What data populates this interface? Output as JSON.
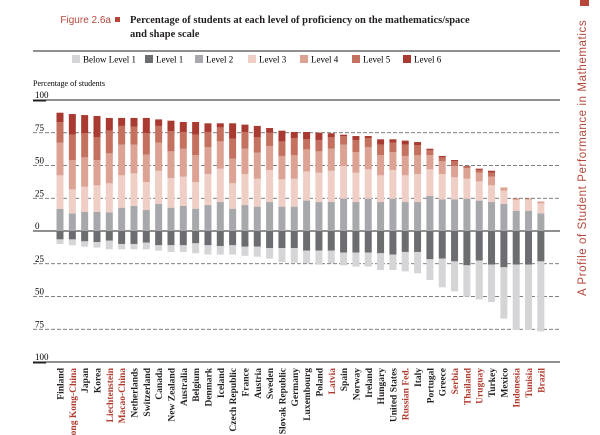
{
  "figure_label": "Figure 2.6a",
  "side_title": "A Profile of Student Performance in Mathematics",
  "chart_data": {
    "type": "bar",
    "stacked": "diverging",
    "title": "Percentage of students at each level of proficiency on the mathematics/space and shape scale",
    "ylabel": "Percentage of students",
    "ylim": [
      -100,
      100
    ],
    "yticks": [
      100,
      75,
      50,
      25,
      0,
      -25,
      -50,
      -75,
      -100
    ],
    "ytick_labels": [
      "100",
      "75",
      "50",
      "25",
      "0",
      "25",
      "50",
      "75",
      "100"
    ],
    "legend": [
      "Below Level 1",
      "Level 1",
      "Level 2",
      "Level 3",
      "Level 4",
      "Level 5",
      "Level 6"
    ],
    "legend_placement": "top",
    "colors": [
      "#d5d5d7",
      "#6c6d70",
      "#a6a8ab",
      "#efcec5",
      "#dca294",
      "#c4715f",
      "#a93a31"
    ],
    "partner_color": "#b03a2e",
    "categories": [
      "Finland",
      "Hong Kong-China",
      "Japan",
      "Korea",
      "Liechtenstein",
      "Macao-China",
      "Netherlands",
      "Switzerland",
      "Canada",
      "New Zealand",
      "Australia",
      "Belgium",
      "Denmark",
      "Iceland",
      "Czech Republic",
      "France",
      "Austria",
      "Sweden",
      "Slovak Republic",
      "Germany",
      "Luxembourg",
      "Poland",
      "Latvia",
      "Spain",
      "Norway",
      "Ireland",
      "Hungary",
      "United States",
      "Russian Fed.",
      "Italy",
      "Portugal",
      "Greece",
      "Serbia",
      "Thailand",
      "Uruguay",
      "Turkey",
      "Mexico",
      "Indonesia",
      "Tunisia",
      "Brazil"
    ],
    "partner": [
      false,
      true,
      false,
      false,
      true,
      true,
      false,
      false,
      false,
      false,
      false,
      false,
      false,
      false,
      false,
      false,
      false,
      false,
      false,
      false,
      false,
      false,
      true,
      false,
      false,
      false,
      false,
      false,
      true,
      false,
      false,
      false,
      true,
      true,
      true,
      false,
      false,
      true,
      true,
      true
    ],
    "series": [
      {
        "name": "Below Level 1",
        "values": [
          3.5,
          4.5,
          4.1,
          4.3,
          6.6,
          4.1,
          4.1,
          5.1,
          4.1,
          5.1,
          5.1,
          7.6,
          7.1,
          6.5,
          7.1,
          7.0,
          7.6,
          8.1,
          10.7,
          11.2,
          9.7,
          10.7,
          9.7,
          9.7,
          10.7,
          10.7,
          12.8,
          11.8,
          14.8,
          16.3,
          15.8,
          21.9,
          22.9,
          23.9,
          29.6,
          28.5,
          39.2,
          49.9,
          49.9,
          53.4
        ]
      },
      {
        "name": "Level 1",
        "values": [
          6.4,
          6.4,
          7.9,
          8.4,
          7.4,
          9.9,
          9.9,
          8.9,
          10.9,
          10.9,
          10.9,
          9.4,
          10.9,
          11.5,
          10.9,
          12.0,
          12.0,
          13.0,
          13.0,
          13.0,
          15.0,
          15.0,
          15.0,
          16.5,
          16.5,
          16.5,
          17.0,
          18.0,
          16.0,
          16.0,
          21.6,
          21.1,
          23.2,
          26.2,
          22.6,
          25.7,
          27.7,
          25.7,
          25.7,
          23.2
        ]
      },
      {
        "name": "Level 2",
        "values": [
          16.8,
          13.5,
          14.5,
          14.5,
          14.2,
          17.8,
          19.1,
          16.0,
          20.6,
          17.8,
          19.1,
          17.0,
          19.8,
          22.1,
          17.0,
          19.8,
          18.6,
          22.1,
          18.6,
          18.6,
          23.2,
          22.1,
          22.1,
          24.7,
          22.1,
          24.7,
          22.1,
          24.7,
          22.1,
          22.1,
          26.7,
          24.2,
          24.2,
          24.7,
          23.2,
          22.1,
          20.6,
          15.5,
          15.5,
          13.5
        ]
      },
      {
        "name": "Level 3",
        "values": [
          25.7,
          18.3,
          19.3,
          20.4,
          22.2,
          24.7,
          24.9,
          21.4,
          25.4,
          22.7,
          22.4,
          20.4,
          23.7,
          25.5,
          19.4,
          23.7,
          21.3,
          24.5,
          20.8,
          21.3,
          22.3,
          22.4,
          23.9,
          24.9,
          22.4,
          22.4,
          20.4,
          21.9,
          20.4,
          21.4,
          20.4,
          19.3,
          16.8,
          15.2,
          14.7,
          12.8,
          10.2,
          8.2,
          8.4,
          7.6
        ]
      },
      {
        "name": "Level 4",
        "values": [
          24.9,
          22.4,
          22.4,
          19.3,
          22.9,
          23.4,
          21.9,
          20.9,
          21.4,
          20.3,
          21.3,
          20.4,
          20.4,
          20.8,
          18.8,
          19.3,
          19.9,
          18.3,
          17.9,
          17.9,
          16.8,
          16.3,
          16.8,
          16.3,
          15.8,
          16.8,
          15.3,
          13.7,
          14.8,
          14.3,
          10.7,
          9.7,
          8.6,
          8.2,
          6.6,
          6.6,
          2.0,
          1.0,
          0.8,
          1.0
        ]
      },
      {
        "name": "Level 5",
        "values": [
          15.6,
          19.3,
          18.4,
          17.3,
          17.3,
          14.3,
          13.7,
          16.3,
          12.8,
          15.3,
          12.8,
          15.7,
          11.7,
          10.7,
          15.3,
          12.8,
          11.7,
          10.2,
          11.1,
          13.2,
          7.7,
          8.7,
          8.7,
          6.6,
          9.2,
          7.1,
          8.1,
          7.1,
          8.6,
          7.6,
          4.0,
          3.0,
          3.6,
          1.0,
          2.1,
          3.0,
          0.3,
          0.2,
          0.1,
          0.3
        ]
      },
      {
        "name": "Level 6",
        "values": [
          7.3,
          15.8,
          13.9,
          16.3,
          9.7,
          6.1,
          6.7,
          11.7,
          5.0,
          8.1,
          7.6,
          9.7,
          6.6,
          3.1,
          11.7,
          5.6,
          8.7,
          3.5,
          8.2,
          4.6,
          5.6,
          5.6,
          3.1,
          1.0,
          3.0,
          1.5,
          4.1,
          2.6,
          3.1,
          2.5,
          1.0,
          1.1,
          1.0,
          0.5,
          1.0,
          1.5,
          0.0,
          0.0,
          0.0,
          0.0
        ]
      }
    ]
  }
}
